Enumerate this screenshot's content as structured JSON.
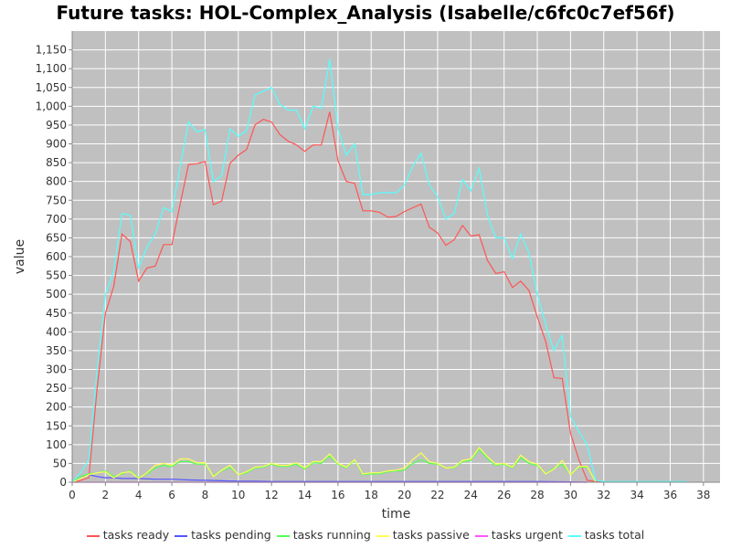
{
  "chart_data": {
    "type": "line",
    "title": "Future tasks: HOL-Complex_Analysis (Isabelle/c6fc0c7ef56f)",
    "xlabel": "time",
    "ylabel": "value",
    "xlim": [
      0,
      39
    ],
    "ylim": [
      0,
      1200
    ],
    "x_ticks": [
      0,
      2,
      4,
      6,
      8,
      10,
      12,
      14,
      16,
      18,
      20,
      22,
      24,
      26,
      28,
      30,
      32,
      34,
      36,
      38
    ],
    "y_ticks": [
      0,
      50,
      100,
      150,
      200,
      250,
      300,
      350,
      400,
      450,
      500,
      550,
      600,
      650,
      700,
      750,
      800,
      850,
      900,
      950,
      1000,
      1050,
      1100,
      1150
    ],
    "y_tick_labels": [
      "0",
      "50",
      "100",
      "150",
      "200",
      "250",
      "300",
      "350",
      "400",
      "450",
      "500",
      "550",
      "600",
      "650",
      "700",
      "750",
      "800",
      "850",
      "900",
      "950",
      "1,000",
      "1,050",
      "1,100",
      "1,150"
    ],
    "grid": true,
    "legend_position": "bottom",
    "background": "#c0c0c0",
    "series": [
      {
        "name": "tasks ready",
        "color": "#ff5555",
        "points": [
          [
            0,
            0
          ],
          [
            0.5,
            5
          ],
          [
            1,
            12
          ],
          [
            1.5,
            250
          ],
          [
            2,
            450
          ],
          [
            2.5,
            520
          ],
          [
            3,
            660
          ],
          [
            3.5,
            640
          ],
          [
            4,
            535
          ],
          [
            4.5,
            570
          ],
          [
            5,
            575
          ],
          [
            5.5,
            632
          ],
          [
            6,
            632
          ],
          [
            6.5,
            740
          ],
          [
            7,
            845
          ],
          [
            7.5,
            847
          ],
          [
            8,
            853
          ],
          [
            8.5,
            738
          ],
          [
            9,
            748
          ],
          [
            9.5,
            848
          ],
          [
            10,
            870
          ],
          [
            10.5,
            885
          ],
          [
            11,
            950
          ],
          [
            11.5,
            965
          ],
          [
            12,
            958
          ],
          [
            12.5,
            925
          ],
          [
            13,
            907
          ],
          [
            13.5,
            897
          ],
          [
            14,
            880
          ],
          [
            14.5,
            897
          ],
          [
            15,
            897
          ],
          [
            15.5,
            985
          ],
          [
            16,
            855
          ],
          [
            16.5,
            800
          ],
          [
            17,
            795
          ],
          [
            17.5,
            722
          ],
          [
            18,
            722
          ],
          [
            18.5,
            718
          ],
          [
            19,
            705
          ],
          [
            19.5,
            707
          ],
          [
            20,
            720
          ],
          [
            20.5,
            730
          ],
          [
            21,
            740
          ],
          [
            21.5,
            678
          ],
          [
            22,
            663
          ],
          [
            22.5,
            630
          ],
          [
            23,
            645
          ],
          [
            23.5,
            683
          ],
          [
            24,
            655
          ],
          [
            24.5,
            658
          ],
          [
            25,
            590
          ],
          [
            25.5,
            555
          ],
          [
            26,
            560
          ],
          [
            26.5,
            518
          ],
          [
            27,
            535
          ],
          [
            27.5,
            510
          ],
          [
            28,
            440
          ],
          [
            28.5,
            375
          ],
          [
            29,
            278
          ],
          [
            29.5,
            276
          ],
          [
            30,
            130
          ],
          [
            30.5,
            60
          ],
          [
            31,
            5
          ],
          [
            31.5,
            2
          ],
          [
            32,
            2
          ],
          [
            33,
            2
          ],
          [
            34,
            2
          ],
          [
            35,
            2
          ],
          [
            36,
            2
          ],
          [
            37,
            2
          ]
        ]
      },
      {
        "name": "tasks pending",
        "color": "#5555ff",
        "points": [
          [
            0,
            0
          ],
          [
            0.5,
            15
          ],
          [
            1,
            20
          ],
          [
            1.5,
            15
          ],
          [
            2,
            12
          ],
          [
            2.5,
            12
          ],
          [
            3,
            10
          ],
          [
            3.5,
            10
          ],
          [
            4,
            10
          ],
          [
            5,
            8
          ],
          [
            6,
            8
          ],
          [
            7,
            6
          ],
          [
            8,
            5
          ],
          [
            9,
            4
          ],
          [
            10,
            3
          ],
          [
            11,
            3
          ],
          [
            12,
            2
          ],
          [
            14,
            2
          ],
          [
            16,
            2
          ],
          [
            18,
            2
          ],
          [
            20,
            2
          ],
          [
            22,
            2
          ],
          [
            24,
            2
          ],
          [
            26,
            2
          ],
          [
            28,
            2
          ],
          [
            30,
            1
          ],
          [
            31,
            0
          ]
        ]
      },
      {
        "name": "tasks running",
        "color": "#55ff55",
        "points": [
          [
            0,
            0
          ],
          [
            0.5,
            15
          ],
          [
            1,
            22
          ],
          [
            1.5,
            25
          ],
          [
            2,
            30
          ],
          [
            2.5,
            15
          ],
          [
            3,
            22
          ],
          [
            3.5,
            30
          ],
          [
            4,
            12
          ],
          [
            4.5,
            22
          ],
          [
            5,
            38
          ],
          [
            5.5,
            45
          ],
          [
            6,
            42
          ],
          [
            6.5,
            55
          ],
          [
            7,
            55
          ],
          [
            7.5,
            48
          ],
          [
            8,
            48
          ],
          [
            8.5,
            18
          ],
          [
            9,
            30
          ],
          [
            9.5,
            40
          ],
          [
            10,
            20
          ],
          [
            10.5,
            25
          ],
          [
            11,
            38
          ],
          [
            11.5,
            40
          ],
          [
            12,
            48
          ],
          [
            12.5,
            42
          ],
          [
            13,
            42
          ],
          [
            13.5,
            48
          ],
          [
            14,
            35
          ],
          [
            14.5,
            52
          ],
          [
            15,
            50
          ],
          [
            15.5,
            70
          ],
          [
            16,
            48
          ],
          [
            16.5,
            38
          ],
          [
            17,
            58
          ],
          [
            17.5,
            20
          ],
          [
            18,
            22
          ],
          [
            18.5,
            22
          ],
          [
            19,
            28
          ],
          [
            19.5,
            30
          ],
          [
            20,
            32
          ],
          [
            20.5,
            50
          ],
          [
            21,
            60
          ],
          [
            21.5,
            50
          ],
          [
            22,
            48
          ],
          [
            22.5,
            38
          ],
          [
            23,
            38
          ],
          [
            23.5,
            55
          ],
          [
            24,
            58
          ],
          [
            24.5,
            88
          ],
          [
            25,
            62
          ],
          [
            25.5,
            45
          ],
          [
            26,
            48
          ],
          [
            26.5,
            38
          ],
          [
            27,
            65
          ],
          [
            27.5,
            50
          ],
          [
            28,
            45
          ],
          [
            28.5,
            22
          ],
          [
            29,
            38
          ],
          [
            29.5,
            48
          ],
          [
            30,
            22
          ],
          [
            30.5,
            40
          ],
          [
            31,
            40
          ],
          [
            31.5,
            2
          ]
        ]
      },
      {
        "name": "tasks passive",
        "color": "#ffff55",
        "points": [
          [
            0,
            0
          ],
          [
            0.5,
            10
          ],
          [
            1,
            20
          ],
          [
            1.5,
            25
          ],
          [
            2,
            28
          ],
          [
            2.5,
            12
          ],
          [
            3,
            25
          ],
          [
            3.5,
            28
          ],
          [
            4,
            10
          ],
          [
            4.5,
            25
          ],
          [
            5,
            45
          ],
          [
            5.5,
            50
          ],
          [
            6,
            45
          ],
          [
            6.5,
            62
          ],
          [
            7,
            62
          ],
          [
            7.5,
            52
          ],
          [
            8,
            52
          ],
          [
            8.5,
            15
          ],
          [
            9,
            32
          ],
          [
            9.5,
            45
          ],
          [
            10,
            20
          ],
          [
            10.5,
            28
          ],
          [
            11,
            40
          ],
          [
            11.5,
            42
          ],
          [
            12,
            50
          ],
          [
            12.5,
            45
          ],
          [
            13,
            45
          ],
          [
            13.5,
            52
          ],
          [
            14,
            38
          ],
          [
            14.5,
            55
          ],
          [
            15,
            55
          ],
          [
            15.5,
            75
          ],
          [
            16,
            50
          ],
          [
            16.5,
            40
          ],
          [
            17,
            60
          ],
          [
            17.5,
            22
          ],
          [
            18,
            25
          ],
          [
            18.5,
            25
          ],
          [
            19,
            30
          ],
          [
            19.5,
            32
          ],
          [
            20,
            38
          ],
          [
            20.5,
            60
          ],
          [
            21,
            78
          ],
          [
            21.5,
            55
          ],
          [
            22,
            50
          ],
          [
            22.5,
            38
          ],
          [
            23,
            40
          ],
          [
            23.5,
            58
          ],
          [
            24,
            62
          ],
          [
            24.5,
            92
          ],
          [
            25,
            68
          ],
          [
            25.5,
            48
          ],
          [
            26,
            50
          ],
          [
            26.5,
            40
          ],
          [
            27,
            72
          ],
          [
            27.5,
            55
          ],
          [
            28,
            48
          ],
          [
            28.5,
            22
          ],
          [
            29,
            35
          ],
          [
            29.5,
            58
          ],
          [
            30,
            20
          ],
          [
            30.5,
            42
          ],
          [
            31,
            42
          ],
          [
            31.5,
            2
          ]
        ]
      },
      {
        "name": "tasks urgent",
        "color": "#ff55ff",
        "points": [
          [
            0,
            0
          ],
          [
            1,
            0
          ],
          [
            2,
            0
          ],
          [
            4,
            0
          ],
          [
            8,
            0
          ],
          [
            12,
            0
          ],
          [
            16,
            0
          ],
          [
            20,
            0
          ],
          [
            24,
            0
          ],
          [
            28,
            0
          ],
          [
            31,
            0
          ]
        ]
      },
      {
        "name": "tasks total",
        "color": "#55ffff",
        "points": [
          [
            0,
            0
          ],
          [
            0.5,
            25
          ],
          [
            1,
            60
          ],
          [
            1.5,
            300
          ],
          [
            2,
            500
          ],
          [
            2.5,
            560
          ],
          [
            3,
            715
          ],
          [
            3.5,
            710
          ],
          [
            4,
            570
          ],
          [
            4.5,
            625
          ],
          [
            5,
            660
          ],
          [
            5.5,
            730
          ],
          [
            6,
            720
          ],
          [
            6.5,
            840
          ],
          [
            7,
            958
          ],
          [
            7.5,
            932
          ],
          [
            8,
            938
          ],
          [
            8.5,
            800
          ],
          [
            9,
            815
          ],
          [
            9.5,
            940
          ],
          [
            10,
            920
          ],
          [
            10.5,
            935
          ],
          [
            11,
            1030
          ],
          [
            11.5,
            1040
          ],
          [
            12,
            1050
          ],
          [
            12.5,
            1005
          ],
          [
            13,
            990
          ],
          [
            13.5,
            990
          ],
          [
            14,
            940
          ],
          [
            14.5,
            1000
          ],
          [
            15,
            995
          ],
          [
            15.5,
            1125
          ],
          [
            16,
            940
          ],
          [
            16.5,
            870
          ],
          [
            17,
            900
          ],
          [
            17.5,
            765
          ],
          [
            18,
            765
          ],
          [
            18.5,
            770
          ],
          [
            19,
            770
          ],
          [
            19.5,
            770
          ],
          [
            20,
            790
          ],
          [
            20.5,
            840
          ],
          [
            21,
            875
          ],
          [
            21.5,
            790
          ],
          [
            22,
            760
          ],
          [
            22.5,
            700
          ],
          [
            23,
            715
          ],
          [
            23.5,
            805
          ],
          [
            24,
            775
          ],
          [
            24.5,
            835
          ],
          [
            25,
            710
          ],
          [
            25.5,
            650
          ],
          [
            26,
            650
          ],
          [
            26.5,
            595
          ],
          [
            27,
            660
          ],
          [
            27.5,
            610
          ],
          [
            28,
            500
          ],
          [
            28.5,
            420
          ],
          [
            29,
            350
          ],
          [
            29.5,
            390
          ],
          [
            30,
            175
          ],
          [
            30.5,
            135
          ],
          [
            31,
            100
          ],
          [
            31.5,
            5
          ],
          [
            32,
            2
          ],
          [
            33,
            2
          ],
          [
            34,
            2
          ],
          [
            35,
            2
          ],
          [
            36,
            2
          ],
          [
            37,
            2
          ]
        ]
      }
    ]
  }
}
